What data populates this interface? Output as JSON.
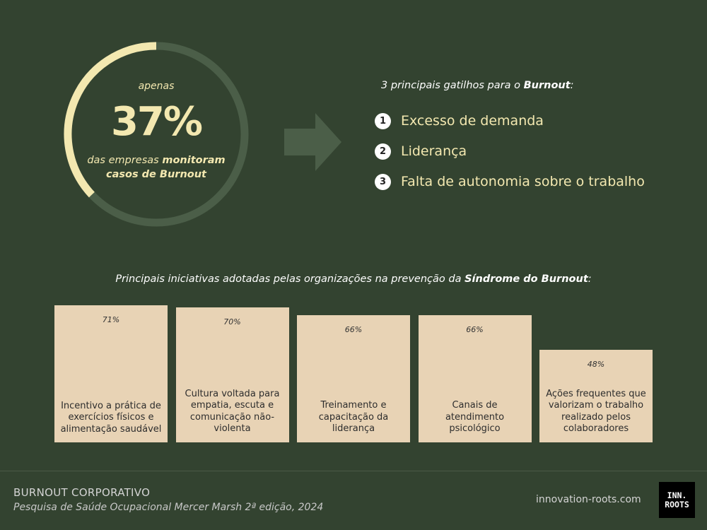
{
  "gauge": {
    "pre_label": "apenas",
    "value": "37%",
    "fraction": 0.37,
    "caption_prefix": "das empresas ",
    "caption_bold": "monitoram casos de Burnout",
    "accent_color": "#f3e8b0",
    "track_color": "#4b5e48"
  },
  "triggers": {
    "heading_prefix": "3 principais gatilhos para o ",
    "heading_bold": "Burnout",
    "heading_suffix": ":",
    "items": [
      {
        "number": "1",
        "label": "Excesso de demanda"
      },
      {
        "number": "2",
        "label": "Liderança"
      },
      {
        "number": "3",
        "label": "Falta de autonomia sobre o trabalho"
      }
    ]
  },
  "initiatives_heading": {
    "prefix": "Principais iniciativas adotadas pelas organizações na prevenção da ",
    "bold": "Síndrome do Burnout",
    "suffix": ":"
  },
  "chart_data": {
    "type": "bar",
    "categories": [
      "Incentivo a prática de exercícios físicos e alimentação saudável",
      "Cultura voltada para empatia, escuta e comunicação não-violenta",
      "Treinamento e capacitação da liderança",
      "Canais de atendimento psicológico",
      "Ações frequentes que valorizam o trabalho realizado pelos colaboradores"
    ],
    "values": [
      71,
      70,
      66,
      66,
      48
    ],
    "value_labels": [
      "71%",
      "70%",
      "66%",
      "66%",
      "48%"
    ],
    "bar_color": "#e8d3b5"
  },
  "footer": {
    "title": "BURNOUT CORPORATIVO",
    "subtitle": "Pesquisa de Saúde Ocupacional Mercer Marsh 2ª edição, 2024",
    "site": "innovation-roots.com",
    "logo_line1": "INN.",
    "logo_line2": "ROOTS"
  }
}
